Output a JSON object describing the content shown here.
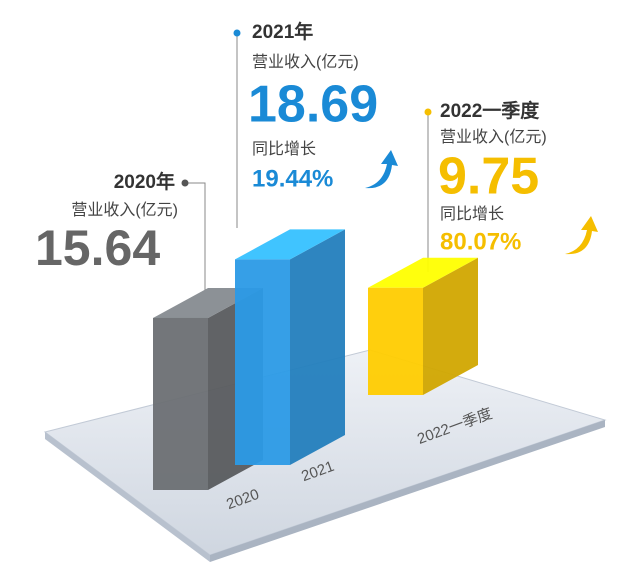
{
  "chart_data": {
    "type": "bar",
    "categories": [
      "2020",
      "2021",
      "2022一季度"
    ],
    "header_labels": [
      "2020年",
      "2021年",
      "2022一季度"
    ],
    "value_caption": "营业收入(亿元)",
    "values": [
      15.64,
      18.69,
      9.75
    ],
    "colors": [
      "#6b6f73",
      "#2b9ae6",
      "#ffcc00"
    ],
    "growth_caption": "同比增长",
    "growth_values": [
      null,
      19.44,
      80.07
    ],
    "growth_value_labels": [
      null,
      "19.44%",
      "80.07%"
    ]
  }
}
